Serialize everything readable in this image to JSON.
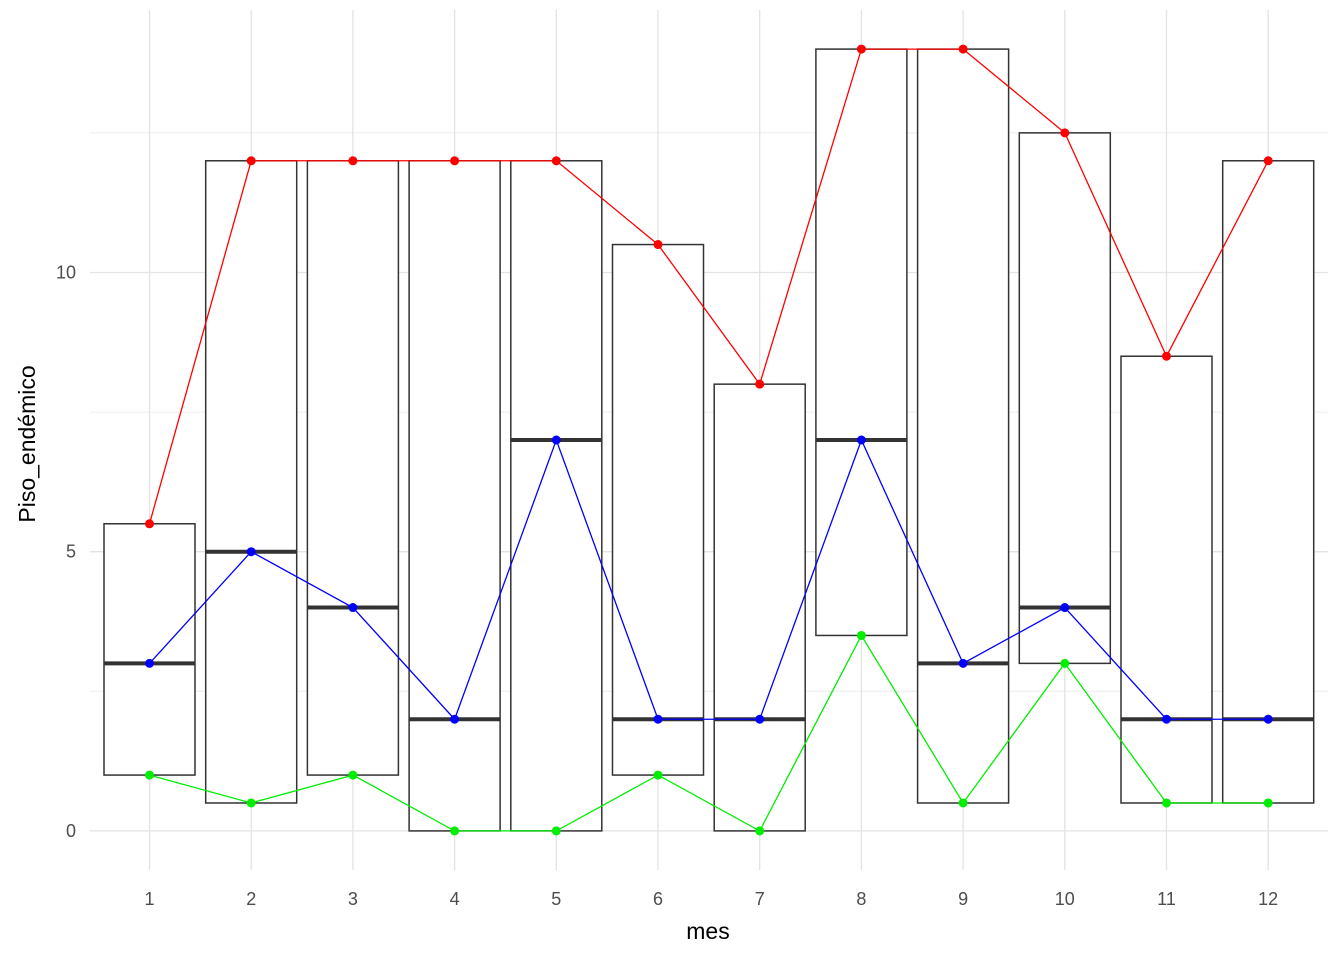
{
  "chart_data": {
    "type": "box",
    "xlabel": "mes",
    "ylabel": "Piso_endémico",
    "categories": [
      "1",
      "2",
      "3",
      "4",
      "5",
      "6",
      "7",
      "8",
      "9",
      "10",
      "11",
      "12"
    ],
    "ylim": [
      -0.7,
      14.7
    ],
    "yticks": [
      0,
      5,
      10
    ],
    "boxes": [
      {
        "lower": 1,
        "median": 3,
        "upper": 5.5
      },
      {
        "lower": 0.5,
        "median": 5,
        "upper": 12
      },
      {
        "lower": 1,
        "median": 4,
        "upper": 12
      },
      {
        "lower": 0,
        "median": 2,
        "upper": 12
      },
      {
        "lower": 0,
        "median": 7,
        "upper": 12
      },
      {
        "lower": 1,
        "median": 2,
        "upper": 10.5
      },
      {
        "lower": 0,
        "median": 2,
        "upper": 8
      },
      {
        "lower": 3.5,
        "median": 7,
        "upper": 14
      },
      {
        "lower": 0.5,
        "median": 3,
        "upper": 14
      },
      {
        "lower": 3,
        "median": 4,
        "upper": 12.5
      },
      {
        "lower": 0.5,
        "median": 2,
        "upper": 8.5
      },
      {
        "lower": 0.5,
        "median": 2,
        "upper": 12
      }
    ],
    "series": [
      {
        "color": "#ff0000",
        "values": [
          5.5,
          12,
          12,
          12,
          12,
          10.5,
          8,
          14,
          14,
          12.5,
          8.5,
          12
        ]
      },
      {
        "color": "#0000ff",
        "values": [
          3,
          5,
          4,
          2,
          7,
          2,
          2,
          7,
          3,
          4,
          2,
          2
        ]
      },
      {
        "color": "#00ee00",
        "values": [
          1,
          0.5,
          1,
          0,
          0,
          1,
          0,
          3.5,
          0.5,
          3,
          0.5,
          0.5
        ]
      }
    ],
    "grid": true,
    "legend": "none"
  }
}
